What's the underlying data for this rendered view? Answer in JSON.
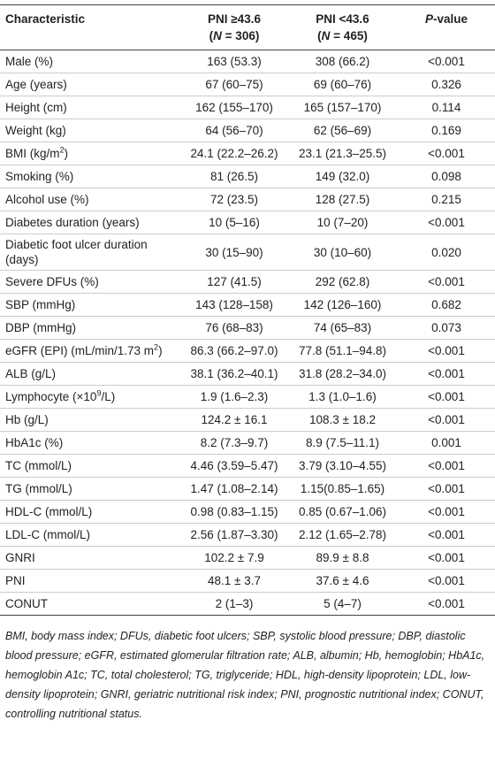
{
  "table": {
    "columns": [
      [
        "Characteristic"
      ],
      [
        "PNI ≥43.6",
        [
          {
            "text": "("
          },
          {
            "text": "N",
            "style": "italic"
          },
          {
            "text": " = 306)"
          }
        ]
      ],
      [
        "PNI <43.6",
        [
          {
            "text": "("
          },
          {
            "text": "N",
            "style": "italic"
          },
          {
            "text": " = 465)"
          }
        ]
      ],
      [
        [
          {
            "text": "P",
            "style": "italic"
          },
          {
            "text": "-value"
          }
        ]
      ]
    ],
    "rows": [
      [
        "Male (%)",
        "163 (53.3)",
        "308 (66.2)",
        "<0.001"
      ],
      [
        "Age (years)",
        "67 (60–75)",
        "69 (60–76)",
        "0.326"
      ],
      [
        "Height (cm)",
        "162 (155–170)",
        "165 (157–170)",
        "0.114"
      ],
      [
        "Weight (kg)",
        "64 (56–70)",
        "62 (56–69)",
        "0.169"
      ],
      [
        [
          {
            "text": "BMI (kg/m"
          },
          {
            "text": "2",
            "style": "sup"
          },
          {
            "text": ")"
          }
        ],
        "24.1 (22.2–26.2)",
        "23.1 (21.3–25.5)",
        "<0.001"
      ],
      [
        "Smoking (%)",
        "81 (26.5)",
        "149 (32.0)",
        "0.098"
      ],
      [
        "Alcohol use (%)",
        "72 (23.5)",
        "128 (27.5)",
        "0.215"
      ],
      [
        "Diabetes duration (years)",
        "10 (5–16)",
        "10 (7–20)",
        "<0.001"
      ],
      [
        "Diabetic foot ulcer duration (days)",
        "30 (15–90)",
        "30 (10–60)",
        "0.020"
      ],
      [
        "Severe DFUs (%)",
        "127 (41.5)",
        "292 (62.8)",
        "<0.001"
      ],
      [
        "SBP (mmHg)",
        "143 (128–158)",
        "142 (126–160)",
        "0.682"
      ],
      [
        "DBP (mmHg)",
        "76 (68–83)",
        "74 (65–83)",
        "0.073"
      ],
      [
        [
          {
            "text": "eGFR (EPI) (mL/min/1.73 m"
          },
          {
            "text": "2",
            "style": "sup"
          },
          {
            "text": ")"
          }
        ],
        "86.3 (66.2–97.0)",
        "77.8 (51.1–94.8)",
        "<0.001"
      ],
      [
        "ALB (g/L)",
        "38.1 (36.2–40.1)",
        "31.8 (28.2–34.0)",
        "<0.001"
      ],
      [
        [
          {
            "text": "Lymphocyte (×10"
          },
          {
            "text": "9",
            "style": "sup"
          },
          {
            "text": "/L)"
          }
        ],
        "1.9 (1.6–2.3)",
        "1.3 (1.0–1.6)",
        "<0.001"
      ],
      [
        "Hb (g/L)",
        "124.2 ± 16.1",
        "108.3 ± 18.2",
        "<0.001"
      ],
      [
        "HbA1c (%)",
        "8.2 (7.3–9.7)",
        "8.9 (7.5–11.1)",
        "0.001"
      ],
      [
        "TC (mmol/L)",
        "4.46 (3.59–5.47)",
        "3.79 (3.10–4.55)",
        "<0.001"
      ],
      [
        "TG (mmol/L)",
        "1.47 (1.08–2.14)",
        "1.15(0.85–1.65)",
        "<0.001"
      ],
      [
        "HDL-C (mmol/L)",
        "0.98 (0.83–1.15)",
        "0.85 (0.67–1.06)",
        "<0.001"
      ],
      [
        "LDL-C (mmol/L)",
        "2.56 (1.87–3.30)",
        "2.12 (1.65–2.78)",
        "<0.001"
      ],
      [
        "GNRI",
        "102.2 ± 7.9",
        "89.9 ± 8.8",
        "<0.001"
      ],
      [
        "PNI",
        "48.1 ± 3.7",
        "37.6 ± 4.6",
        "<0.001"
      ],
      [
        "CONUT",
        "2 (1–3)",
        "5 (4–7)",
        "<0.001"
      ]
    ]
  },
  "footnote": "BMI, body mass index; DFUs, diabetic foot ulcers; SBP, systolic blood pressure; DBP, diastolic blood pressure; eGFR, estimated glomerular filtration rate; ALB, albumin; Hb, hemoglobin; HbA1c, hemoglobin A1c; TC, total cholesterol; TG, triglyceride; HDL, high-density lipoprotein; LDL, low- density lipoprotein; GNRI, geriatric nutritional risk index; PNI, prognostic nutritional index; CONUT, controlling nutritional status."
}
